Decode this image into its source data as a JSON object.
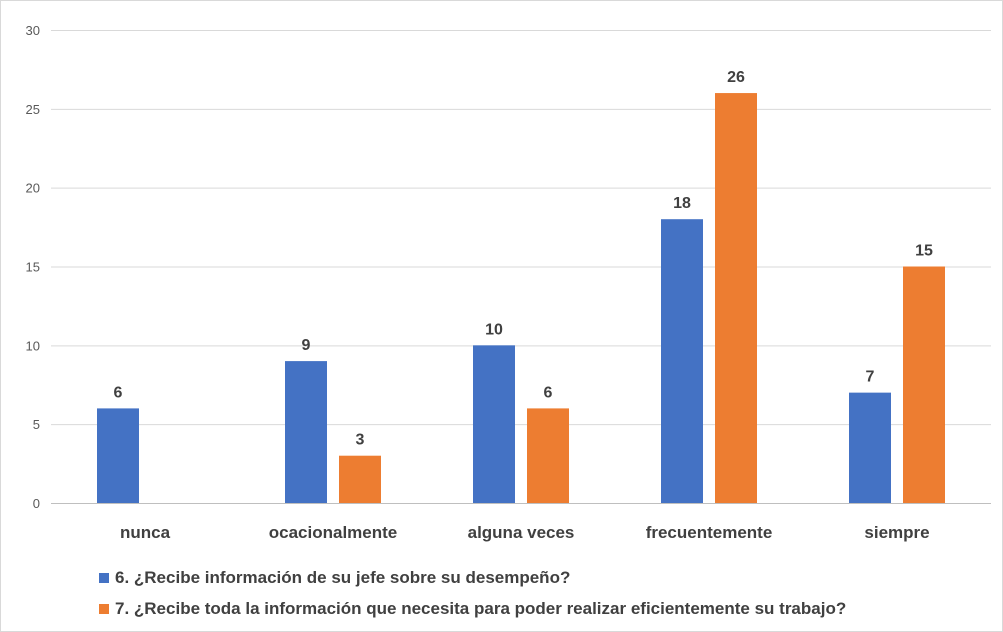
{
  "chart_data": {
    "type": "bar",
    "title": "",
    "xlabel": "",
    "ylabel": "",
    "ylim": [
      0,
      30
    ],
    "yticks": [
      0,
      5,
      10,
      15,
      20,
      25,
      30
    ],
    "grid": true,
    "legend_position": "bottom",
    "categories": [
      "nunca",
      "ocacionalmente",
      "alguna veces",
      "frecuentemente",
      "siempre"
    ],
    "series": [
      {
        "name": "6. ¿Recibe información de su jefe sobre su desempeño?",
        "color": "#4472c4",
        "values": [
          6,
          9,
          10,
          18,
          7
        ]
      },
      {
        "name": "7. ¿Recibe toda la información que necesita para poder realizar eficientemente su trabajo?",
        "color": "#ed7d31",
        "values": [
          null,
          3,
          6,
          26,
          15
        ]
      }
    ]
  }
}
